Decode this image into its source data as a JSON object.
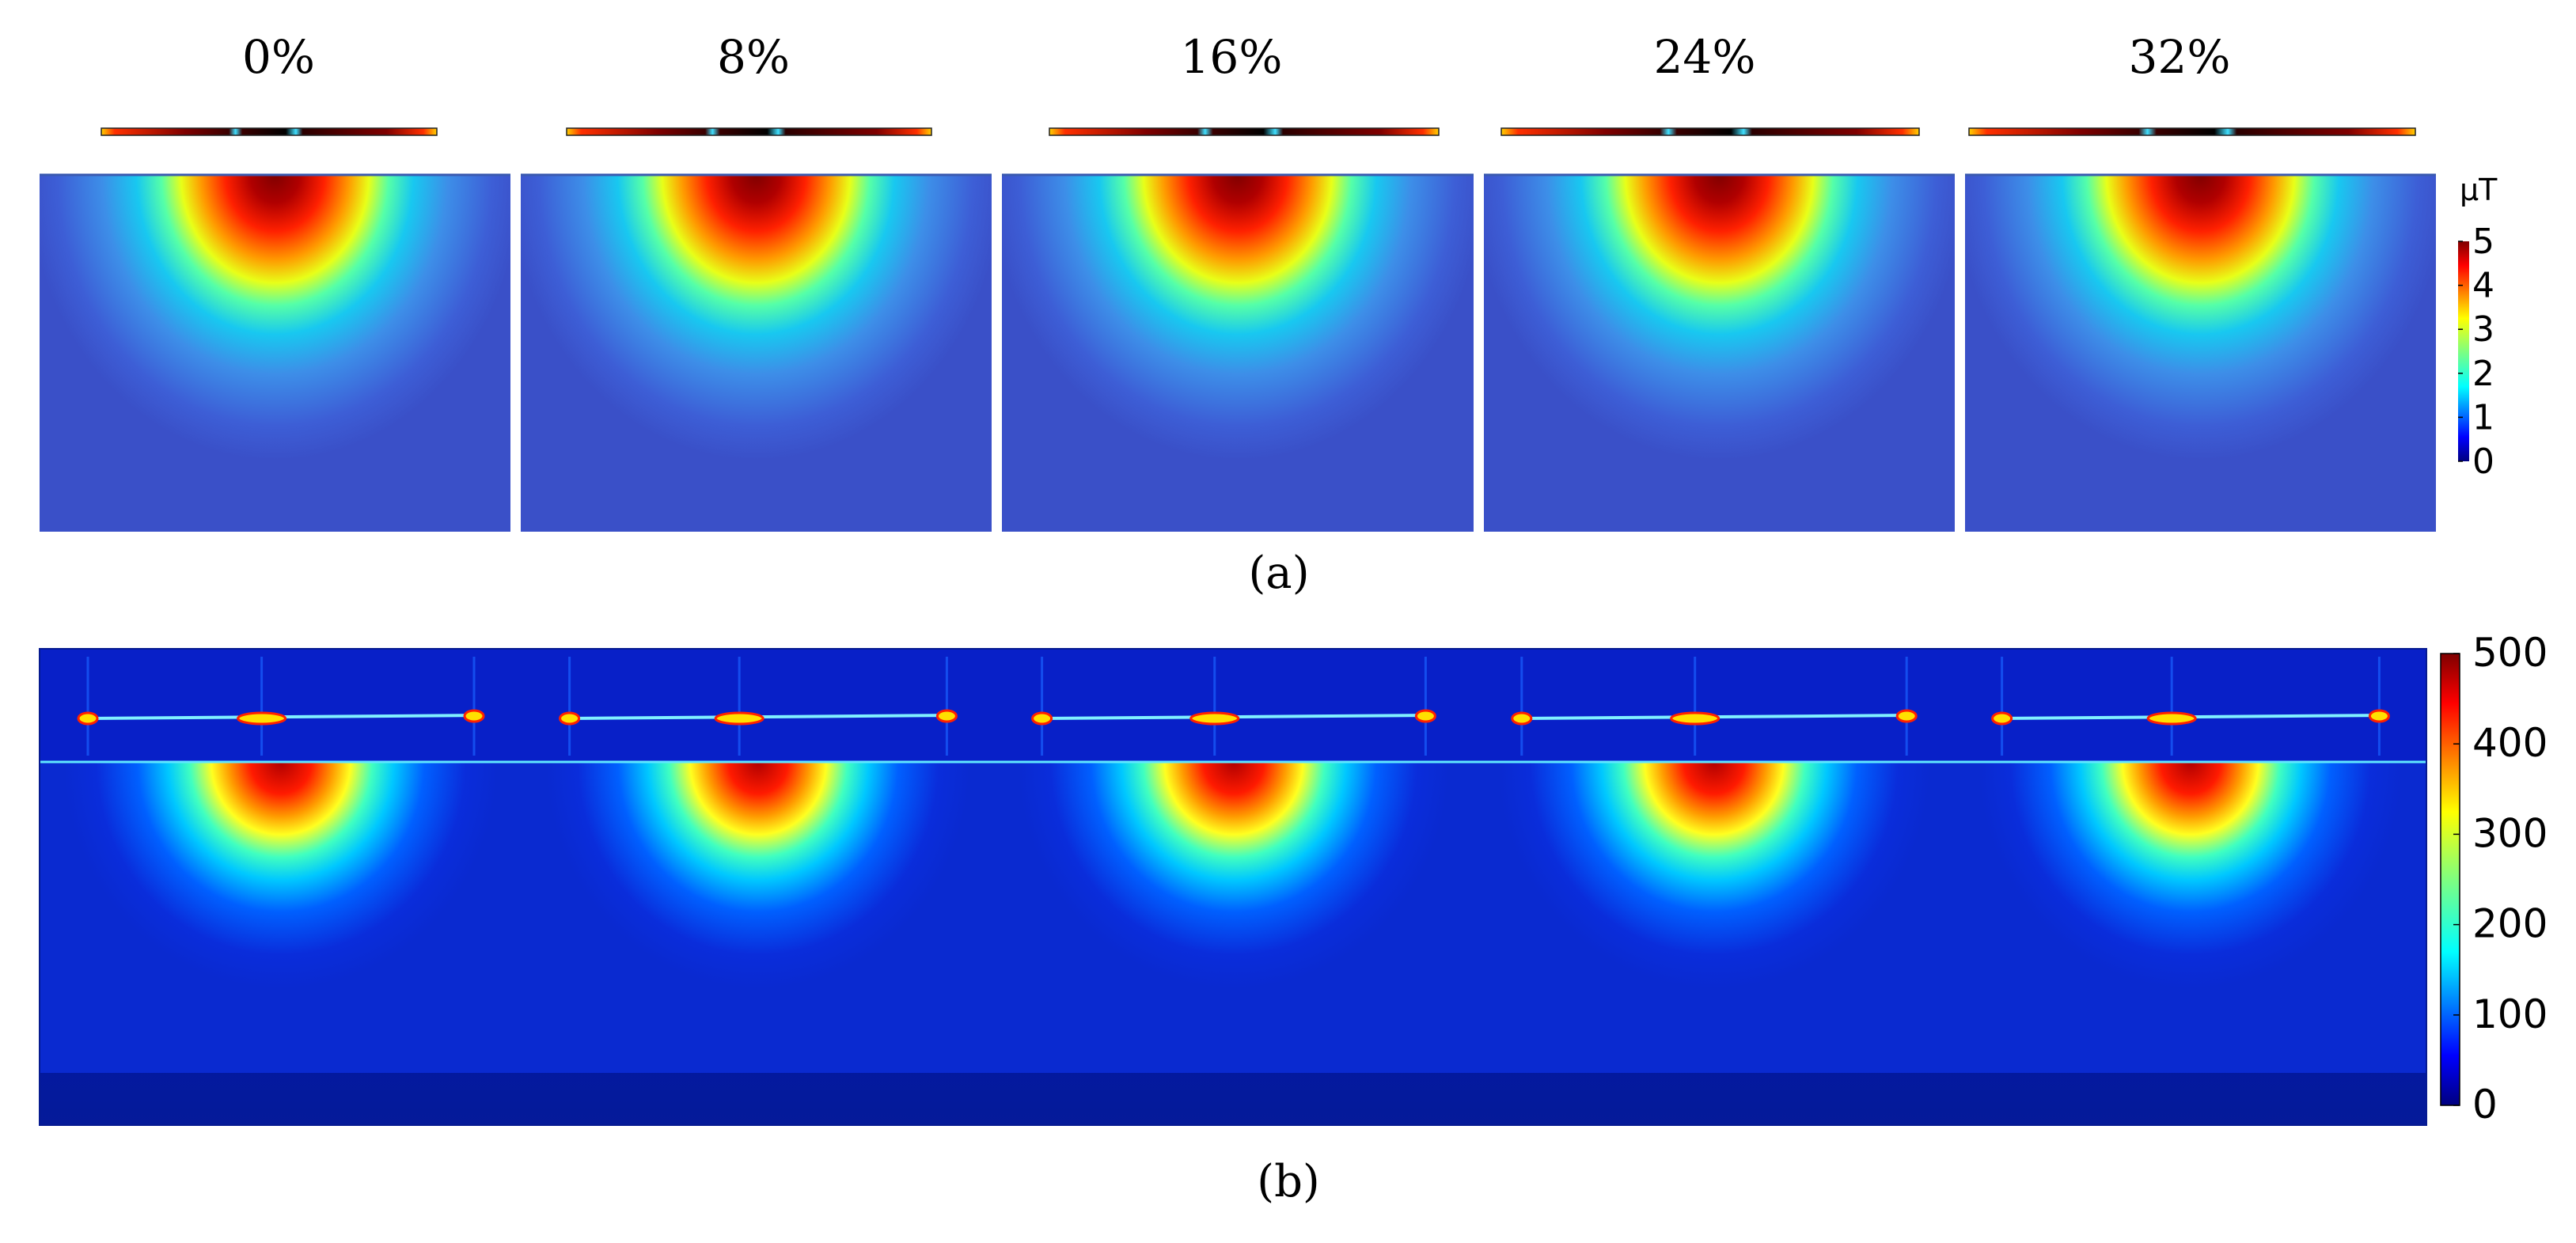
{
  "figure": {
    "panel_a_label": "(a)",
    "panel_b_label": "(b)"
  },
  "chart_data": [
    {
      "type": "heatmap",
      "panel": "(a)",
      "columns": [
        "0%",
        "8%",
        "16%",
        "24%",
        "32%"
      ],
      "colorbar": {
        "unit": "μT",
        "ticks": [
          "0",
          "1",
          "2",
          "3",
          "4",
          "5"
        ],
        "range": [
          0,
          5
        ],
        "colormap": "jet"
      },
      "peak_value": 5,
      "background_value": 0.7
    },
    {
      "type": "heatmap",
      "panel": "(b)",
      "columns": [
        "0%",
        "8%",
        "16%",
        "24%",
        "32%"
      ],
      "colorbar": {
        "unit": "",
        "ticks": [
          "0",
          "100",
          "200",
          "300",
          "400",
          "500"
        ],
        "range": [
          0,
          500
        ],
        "colormap": "jet"
      },
      "peak_value": 500,
      "background_value": 70
    }
  ],
  "colors": {
    "jet_stops": [
      "#00007f",
      "#0000ff",
      "#007fff",
      "#00ffff",
      "#7fff7f",
      "#ffff00",
      "#ff7f00",
      "#ff0000",
      "#7f0000"
    ],
    "panel_a_background": "#3d5ed6",
    "panel_b_background": "#0a2ddb"
  }
}
